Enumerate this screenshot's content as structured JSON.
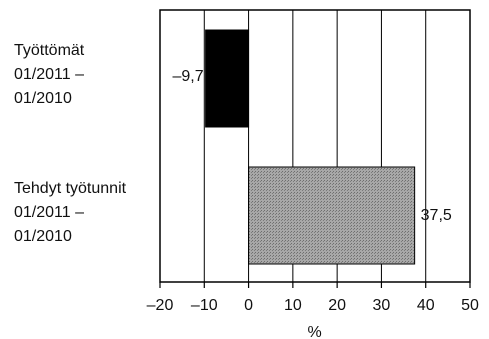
{
  "chart_data": {
    "type": "bar",
    "orientation": "horizontal",
    "categories": [
      [
        "Työttömät",
        "01/2011 –",
        "01/2010"
      ],
      [
        "Tehdyt työtunnit",
        "01/2011 –",
        "01/2010"
      ]
    ],
    "values": [
      -9.7,
      37.5
    ],
    "value_labels": [
      "–9,7",
      "37,5"
    ],
    "bar_colors": [
      "#000000",
      "#9a9a9a"
    ],
    "xlim": [
      -20,
      50
    ],
    "xticks": [
      -20,
      -10,
      0,
      10,
      20,
      30,
      40,
      50
    ],
    "xtick_labels": [
      "–20",
      "–10",
      "0",
      "10",
      "20",
      "30",
      "40",
      "50"
    ],
    "xlabel": "%",
    "ylabel": "",
    "title": "",
    "grid": "vertical"
  }
}
